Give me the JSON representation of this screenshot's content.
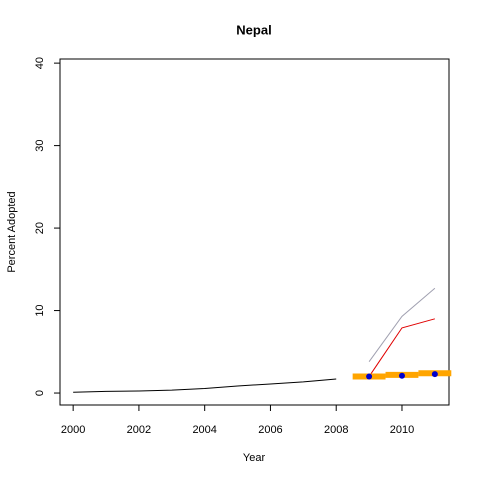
{
  "chart_data": {
    "type": "line",
    "title": "Nepal",
    "x_label": "Year",
    "y_label": "Percent Adopted",
    "xlim": [
      1999.6,
      2011.43
    ],
    "ylim": [
      -1.45,
      40.5
    ],
    "xticks": [
      2000,
      2002,
      2004,
      2006,
      2008,
      2010
    ],
    "yticks": [
      0,
      10,
      20,
      30,
      40
    ],
    "series": [
      {
        "style": "line",
        "color": "#000000",
        "width": 1,
        "x": [
          2000,
          2001,
          2002,
          2003,
          2004,
          2005,
          2006,
          2007,
          2008
        ],
        "values": [
          0.1,
          0.2,
          0.25,
          0.35,
          0.55,
          0.85,
          1.1,
          1.35,
          1.7
        ]
      },
      {
        "style": "line",
        "color": "#a0a0b0",
        "width": 1,
        "x": [
          2009,
          2010,
          2011
        ],
        "values": [
          3.8,
          9.3,
          12.7
        ]
      },
      {
        "style": "line",
        "color": "#e00000",
        "width": 1,
        "x": [
          2009,
          2010,
          2011
        ],
        "values": [
          2.0,
          7.9,
          9.0
        ]
      },
      {
        "style": "step",
        "color": "#ffa500",
        "width": 6,
        "x": [
          2009,
          2010,
          2011
        ],
        "values": [
          2.0,
          2.2,
          2.4
        ]
      },
      {
        "style": "points",
        "color": "#0000cc",
        "width": 3,
        "x": [
          2009,
          2010,
          2011
        ],
        "values": [
          2.0,
          2.1,
          2.3
        ]
      }
    ]
  }
}
